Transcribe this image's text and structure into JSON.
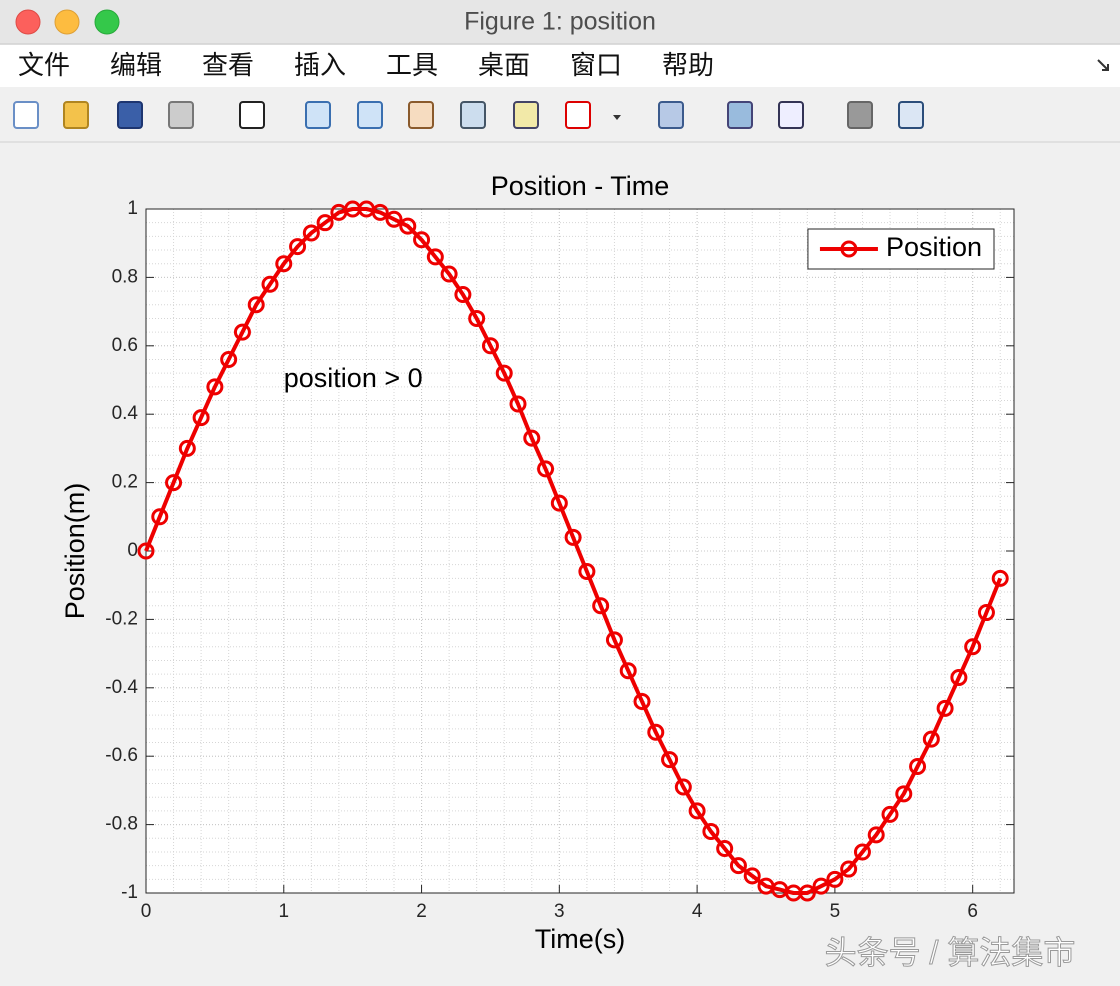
{
  "window": {
    "title": "Figure 1: position",
    "menu": [
      "文件",
      "编辑",
      "查看",
      "插入",
      "工具",
      "桌面",
      "窗口",
      "帮助"
    ]
  },
  "chart_data": {
    "type": "line",
    "title": "Position - Time",
    "x_label": "Time(s)",
    "y_label": "Position(m)",
    "x": [
      0,
      0.1,
      0.2,
      0.3,
      0.4,
      0.5,
      0.6,
      0.7,
      0.8,
      0.9,
      1,
      1.1,
      1.2,
      1.3,
      1.4,
      1.5,
      1.6,
      1.7,
      1.8,
      1.9,
      2,
      2.1,
      2.2,
      2.3,
      2.4,
      2.5,
      2.6,
      2.7,
      2.8,
      2.9,
      3,
      3.1,
      3.2,
      3.3,
      3.4,
      3.5,
      3.6,
      3.7,
      3.8,
      3.9,
      4,
      4.1,
      4.2,
      4.3,
      4.4,
      4.5,
      4.6,
      4.7,
      4.8,
      4.9,
      5,
      5.1,
      5.2,
      5.3,
      5.4,
      5.5,
      5.6,
      5.7,
      5.8,
      5.9,
      6,
      6.1,
      6.2
    ],
    "series": [
      {
        "name": "Position",
        "color": "#ee0000",
        "marker": "circle",
        "values": [
          0,
          0.1,
          0.2,
          0.3,
          0.39,
          0.48,
          0.56,
          0.64,
          0.72,
          0.78,
          0.84,
          0.89,
          0.93,
          0.96,
          0.99,
          1,
          1,
          0.99,
          0.97,
          0.95,
          0.91,
          0.86,
          0.81,
          0.75,
          0.68,
          0.6,
          0.52,
          0.43,
          0.33,
          0.24,
          0.14,
          0.04,
          -0.06,
          -0.16,
          -0.26,
          -0.35,
          -0.44,
          -0.53,
          -0.61,
          -0.69,
          -0.76,
          -0.82,
          -0.87,
          -0.92,
          -0.95,
          -0.98,
          -0.99,
          -1,
          -1,
          -0.98,
          -0.96,
          -0.93,
          -0.88,
          -0.83,
          -0.77,
          -0.71,
          -0.63,
          -0.55,
          -0.46,
          -0.37,
          -0.28,
          -0.18,
          -0.08
        ]
      }
    ],
    "xlim": [
      0,
      6.3
    ],
    "ylim": [
      -1,
      1
    ],
    "xticks": [
      0,
      1,
      2,
      3,
      4,
      5,
      6
    ],
    "yticks": [
      -1,
      -0.8,
      -0.6,
      -0.4,
      -0.2,
      0,
      0.2,
      0.4,
      0.6,
      0.8,
      1
    ],
    "grid": true,
    "minor_grid": true,
    "legend": "northeast",
    "annotations": [
      {
        "text": "position > 0",
        "x": 1,
        "y": 0.5
      }
    ]
  },
  "watermark": "头条号 / 算法集市"
}
